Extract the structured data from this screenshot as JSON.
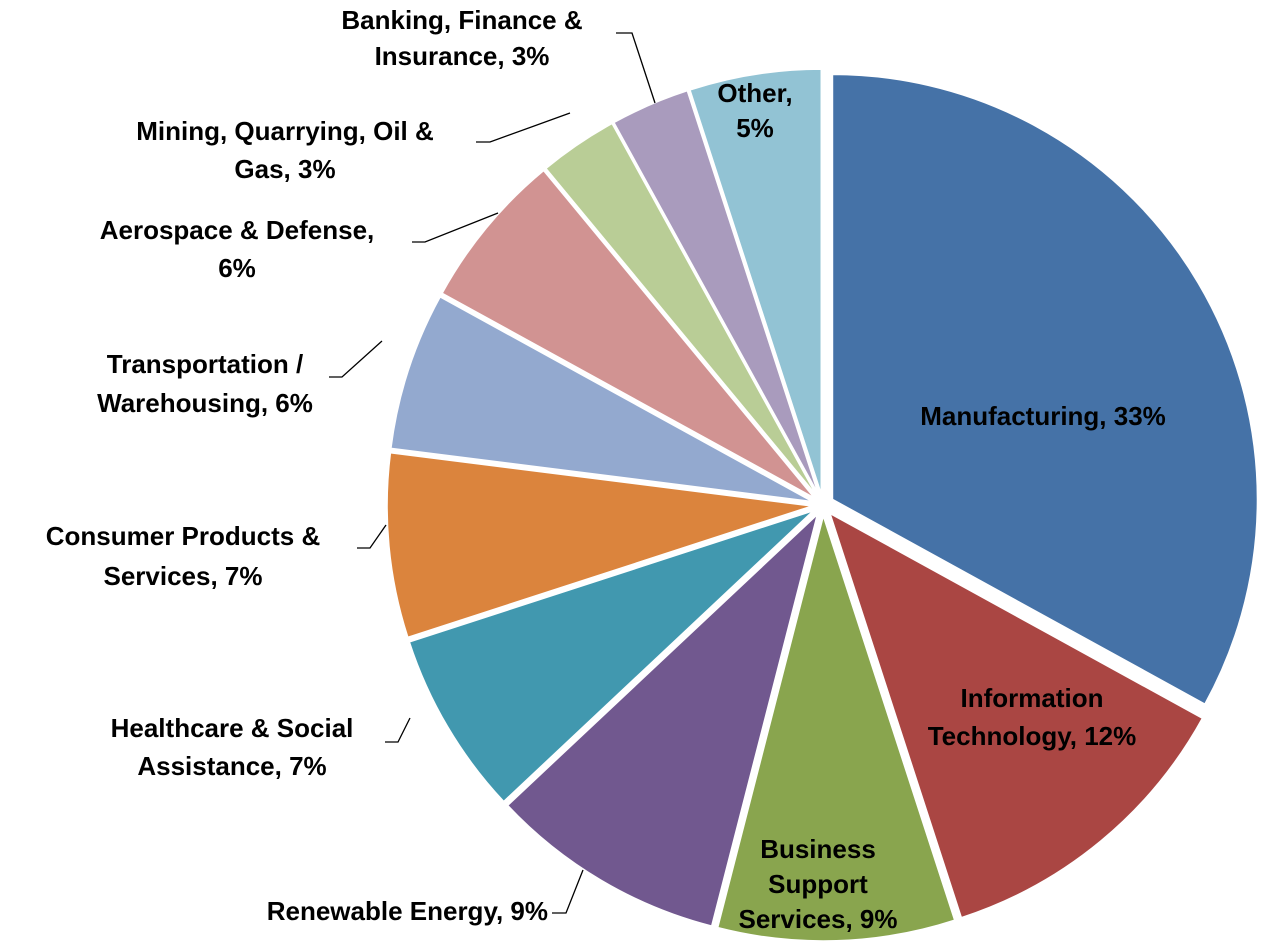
{
  "chart_data": {
    "type": "pie",
    "values": [
      33,
      12,
      9,
      9,
      7,
      7,
      6,
      6,
      3,
      3,
      5
    ],
    "value_labels": [
      [
        "Manufacturing, 33%"
      ],
      [
        "Information",
        "Technology, 12%"
      ],
      [
        "Business",
        "Support",
        "Services, 9%"
      ],
      [
        "Renewable Energy, 9%"
      ],
      [
        "Healthcare & Social",
        "Assistance, 7%"
      ],
      [
        "Consumer Products &",
        "Services, 7%"
      ],
      [
        "Transportation /",
        "Warehousing, 6%"
      ],
      [
        "Aerospace & Defense,",
        "6%"
      ],
      [
        "Mining, Quarrying, Oil &",
        "Gas, 3%"
      ],
      [
        "Banking, Finance &",
        "Insurance, 3%"
      ],
      [
        "Other,",
        "5%"
      ]
    ],
    "colors": [
      "#4572a7",
      "#aa4643",
      "#89a54e",
      "#71588f",
      "#4198af",
      "#db843d",
      "#93a9cf",
      "#d19392",
      "#b9cd96",
      "#a99bbd",
      "#92c3d4"
    ]
  }
}
